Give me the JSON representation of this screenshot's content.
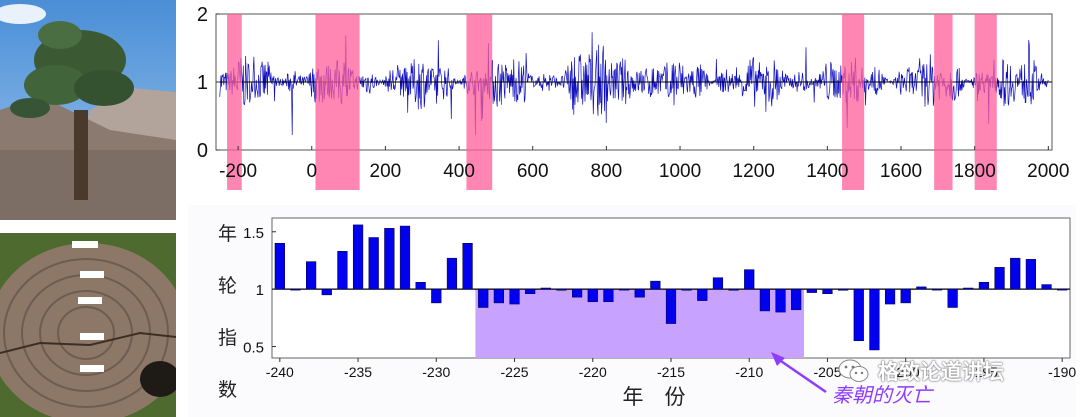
{
  "chart_data": [
    {
      "type": "line",
      "title": "",
      "xlabel": "",
      "ylabel": "",
      "xlim": [
        -260,
        2010
      ],
      "ylim": [
        0,
        2
      ],
      "x_ticks": [
        -200,
        0,
        200,
        400,
        600,
        800,
        1000,
        1200,
        1400,
        1600,
        1800,
        2000
      ],
      "y_ticks": [
        0,
        1,
        2
      ],
      "x_tick_labels": [
        "-200",
        "0",
        "200",
        "400",
        "600",
        "800",
        "1000",
        "1200",
        "1400",
        "1600",
        "1800",
        "2000"
      ],
      "y_tick_labels": [
        "0",
        "1",
        "2"
      ],
      "reference_line": 1,
      "series": [
        {
          "values_note": "",
          "color": "#1010c0"
        }
      ],
      "highlight_bands": [
        [
          -230,
          -190
        ],
        [
          10,
          130
        ],
        [
          420,
          490
        ],
        [
          1440,
          1500
        ],
        [
          1690,
          1740
        ],
        [
          1800,
          1860
        ]
      ],
      "band_color": "#ff5c9a",
      "line_color": "#1010c0",
      "x_start": -250,
      "x_end": 2000
    },
    {
      "type": "bar",
      "title": "",
      "xlabel": "年　份",
      "ylabel": "年 轮 指 数",
      "xlim": [
        -240.5,
        -189.5
      ],
      "ylim": [
        0.4,
        1.62
      ],
      "baseline": 1,
      "x_ticks": [
        -240,
        -235,
        -230,
        -225,
        -220,
        -215,
        -210,
        -205,
        -200,
        -195,
        -190
      ],
      "x_tick_labels": [
        "-240",
        "-235",
        "-230",
        "-225",
        "-220",
        "-215",
        "-210",
        "-205",
        "-200",
        "-195",
        "-190"
      ],
      "y_ticks": [
        0.5,
        1,
        1.5
      ],
      "y_tick_labels": [
        "0.5",
        "1",
        "1.5"
      ],
      "x": [
        -240,
        -239,
        -238,
        -237,
        -236,
        -235,
        -234,
        -233,
        -232,
        -231,
        -230,
        -229,
        -228,
        -227,
        -226,
        -225,
        -224,
        -223,
        -222,
        -221,
        -220,
        -219,
        -218,
        -217,
        -216,
        -215,
        -214,
        -213,
        -212,
        -211,
        -210,
        -209,
        -208,
        -207,
        -206,
        -205,
        -204,
        -203,
        -202,
        -201,
        -200,
        -199,
        -198,
        -197,
        -196,
        -195,
        -194,
        -193,
        -192,
        -191,
        -190
      ],
      "values": [
        1.4,
        1.0,
        1.24,
        0.95,
        1.33,
        1.56,
        1.45,
        1.53,
        1.55,
        1.06,
        0.88,
        1.27,
        1.4,
        0.84,
        0.88,
        0.87,
        0.96,
        1.01,
        0.99,
        0.93,
        0.89,
        0.89,
        1.0,
        0.93,
        1.07,
        0.7,
        0.99,
        0.9,
        1.1,
        0.99,
        1.17,
        0.81,
        0.8,
        0.82,
        0.97,
        0.96,
        0.99,
        0.55,
        0.47,
        0.87,
        0.88,
        1.02,
        1.0,
        0.84,
        1.01,
        1.06,
        1.19,
        1.27,
        1.26,
        1.04,
        1.0
      ],
      "bar_color": "#0000ee",
      "highlight_band": [
        -227.5,
        -206.5
      ],
      "highlight_color": "#c8a2ff",
      "annotation": {
        "text": "秦朝的灭亡",
        "color": "#8e3dff"
      }
    }
  ],
  "watermark": {
    "text": "格致论道讲坛"
  }
}
